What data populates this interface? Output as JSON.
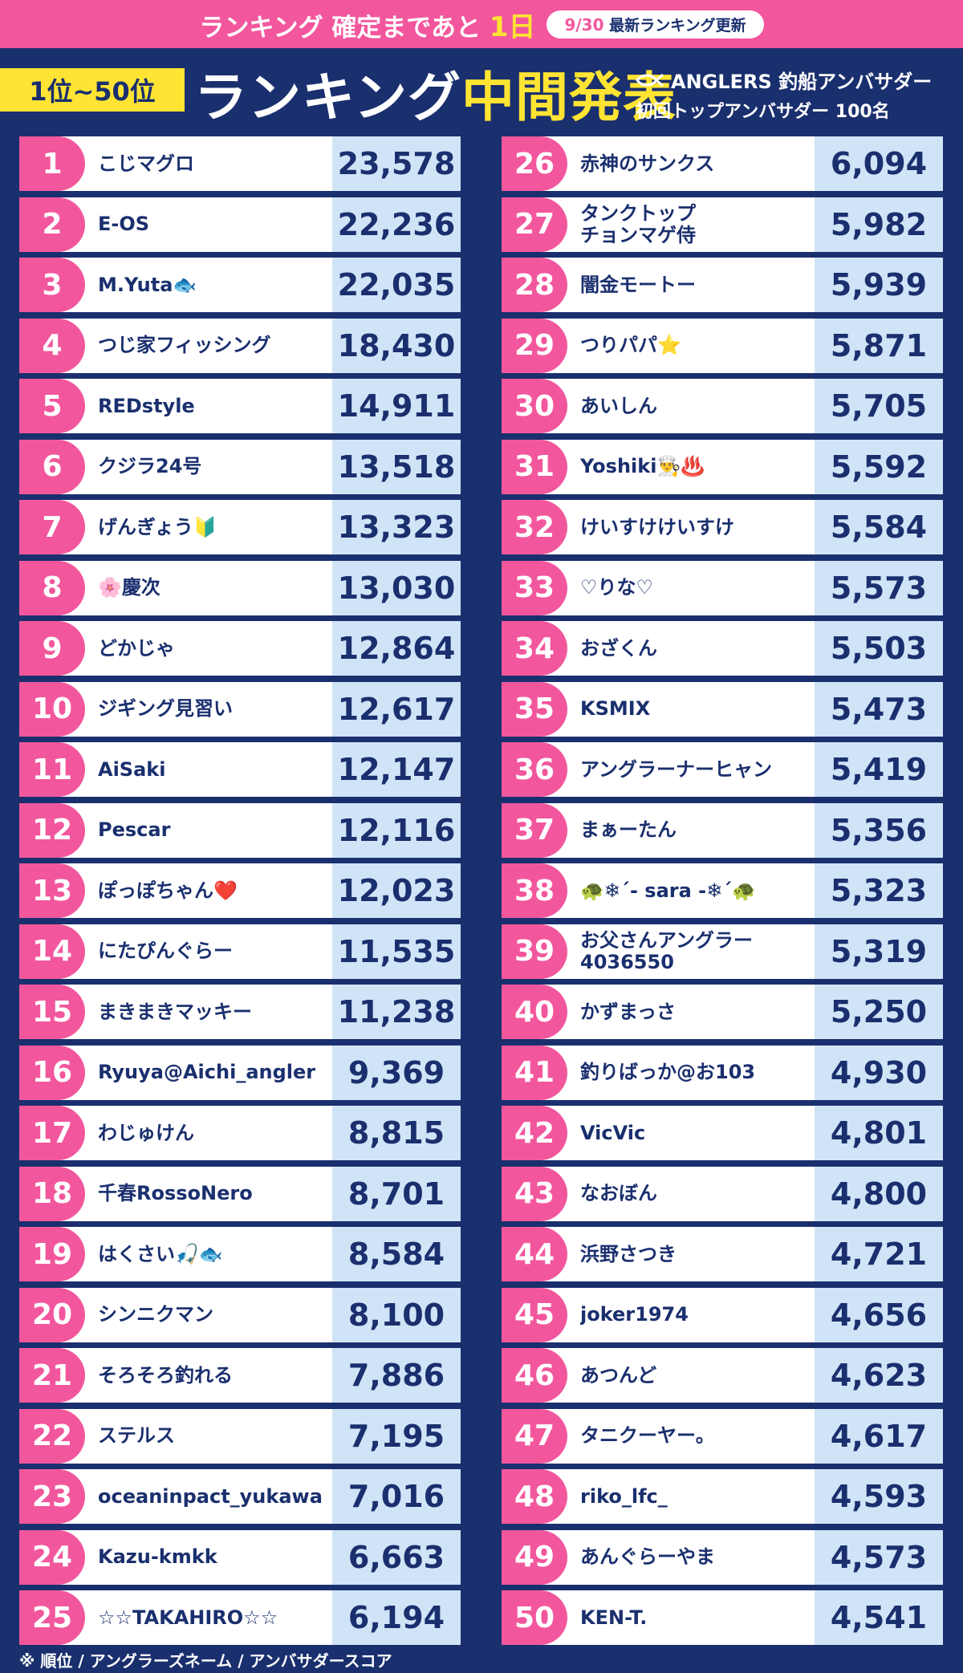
{
  "banner": {
    "countdown_prefix": "ランキング 確定まであと",
    "countdown_days": "1日",
    "date": "9/30",
    "date_suffix": "最新ランキング更新"
  },
  "header": {
    "range": "1位~50位",
    "title_main": "ランキング",
    "title_accent": "中間発表",
    "brand_line1": "ANGLERS 釣船アンバサダー",
    "brand_line2": "初回トップアンバサダー 100名",
    "brand_icon": "fish-logo-icon"
  },
  "colors": {
    "navy": "#1a2f6e",
    "pink": "#f2579d",
    "yellow": "#ffe433",
    "light_blue": "#d0e4f7"
  },
  "ranking": [
    {
      "rank": "1",
      "name": "こじマグロ",
      "score": "23,578"
    },
    {
      "rank": "2",
      "name": "E-OS",
      "score": "22,236"
    },
    {
      "rank": "3",
      "name": "M.Yuta🐟",
      "score": "22,035"
    },
    {
      "rank": "4",
      "name": "つじ家フィッシング",
      "score": "18,430"
    },
    {
      "rank": "5",
      "name": "REDstyle",
      "score": "14,911"
    },
    {
      "rank": "6",
      "name": "クジラ24号",
      "score": "13,518"
    },
    {
      "rank": "7",
      "name": "げんぎょう🔰",
      "score": "13,323"
    },
    {
      "rank": "8",
      "name": "🌸慶次",
      "score": "13,030"
    },
    {
      "rank": "9",
      "name": "どかじゃ",
      "score": "12,864"
    },
    {
      "rank": "10",
      "name": "ジギング見習い",
      "score": "12,617"
    },
    {
      "rank": "11",
      "name": "AiSaki",
      "score": "12,147"
    },
    {
      "rank": "12",
      "name": "Pescar",
      "score": "12,116"
    },
    {
      "rank": "13",
      "name": "ぽっぽちゃん❤️",
      "score": "12,023"
    },
    {
      "rank": "14",
      "name": "にたぴんぐらー",
      "score": "11,535"
    },
    {
      "rank": "15",
      "name": "まきまきマッキー",
      "score": "11,238"
    },
    {
      "rank": "16",
      "name": "Ryuya@Aichi_angler",
      "score": "9,369"
    },
    {
      "rank": "17",
      "name": "わじゅけん",
      "score": "8,815"
    },
    {
      "rank": "18",
      "name": "千春RossoNero",
      "score": "8,701"
    },
    {
      "rank": "19",
      "name": "はくさい🎣🐟",
      "score": "8,584"
    },
    {
      "rank": "20",
      "name": "シンニクマン",
      "score": "8,100"
    },
    {
      "rank": "21",
      "name": "そろそろ釣れる",
      "score": "7,886"
    },
    {
      "rank": "22",
      "name": "ステルス",
      "score": "7,195"
    },
    {
      "rank": "23",
      "name": "oceaninpact_yukawa",
      "score": "7,016"
    },
    {
      "rank": "24",
      "name": "Kazu-kmkk",
      "score": "6,663"
    },
    {
      "rank": "25",
      "name": "☆☆TAKAHIRO☆☆",
      "score": "6,194"
    },
    {
      "rank": "26",
      "name": "赤神のサンクス",
      "score": "6,094"
    },
    {
      "rank": "27",
      "name": "タンクトップ\nチョンマゲ侍",
      "score": "5,982"
    },
    {
      "rank": "28",
      "name": "闇金モートー",
      "score": "5,939"
    },
    {
      "rank": "29",
      "name": "つりパパ⭐",
      "score": "5,871"
    },
    {
      "rank": "30",
      "name": "あいしん",
      "score": "5,705"
    },
    {
      "rank": "31",
      "name": "Yoshiki👨‍🍳♨️",
      "score": "5,592"
    },
    {
      "rank": "32",
      "name": "けいすけけいすけ",
      "score": "5,584"
    },
    {
      "rank": "33",
      "name": "♡りな♡",
      "score": "5,573"
    },
    {
      "rank": "34",
      "name": "おざくん",
      "score": "5,503"
    },
    {
      "rank": "35",
      "name": "KSMIX",
      "score": "5,473"
    },
    {
      "rank": "36",
      "name": "アングラーナーヒャン",
      "score": "5,419"
    },
    {
      "rank": "37",
      "name": "まぁーたん",
      "score": "5,356"
    },
    {
      "rank": "38",
      "name": "🐢❄´- sara -❄´🐢",
      "score": "5,323"
    },
    {
      "rank": "39",
      "name": "お父さんアングラー\n4036550",
      "score": "5,319"
    },
    {
      "rank": "40",
      "name": "かずまっさ",
      "score": "5,250"
    },
    {
      "rank": "41",
      "name": "釣りばっか@お103",
      "score": "4,930"
    },
    {
      "rank": "42",
      "name": "VicVic",
      "score": "4,801"
    },
    {
      "rank": "43",
      "name": "なおぼん",
      "score": "4,800"
    },
    {
      "rank": "44",
      "name": "浜野さつき",
      "score": "4,721"
    },
    {
      "rank": "45",
      "name": "joker1974",
      "score": "4,656"
    },
    {
      "rank": "46",
      "name": "あつんど",
      "score": "4,623"
    },
    {
      "rank": "47",
      "name": "タニクーヤー。",
      "score": "4,617"
    },
    {
      "rank": "48",
      "name": "riko_lfc_",
      "score": "4,593"
    },
    {
      "rank": "49",
      "name": "あんぐらーやま",
      "score": "4,573"
    },
    {
      "rank": "50",
      "name": "KEN-T.",
      "score": "4,541"
    }
  ],
  "footer": "※ 順位 / アングラーズネーム / アンバサダースコア"
}
